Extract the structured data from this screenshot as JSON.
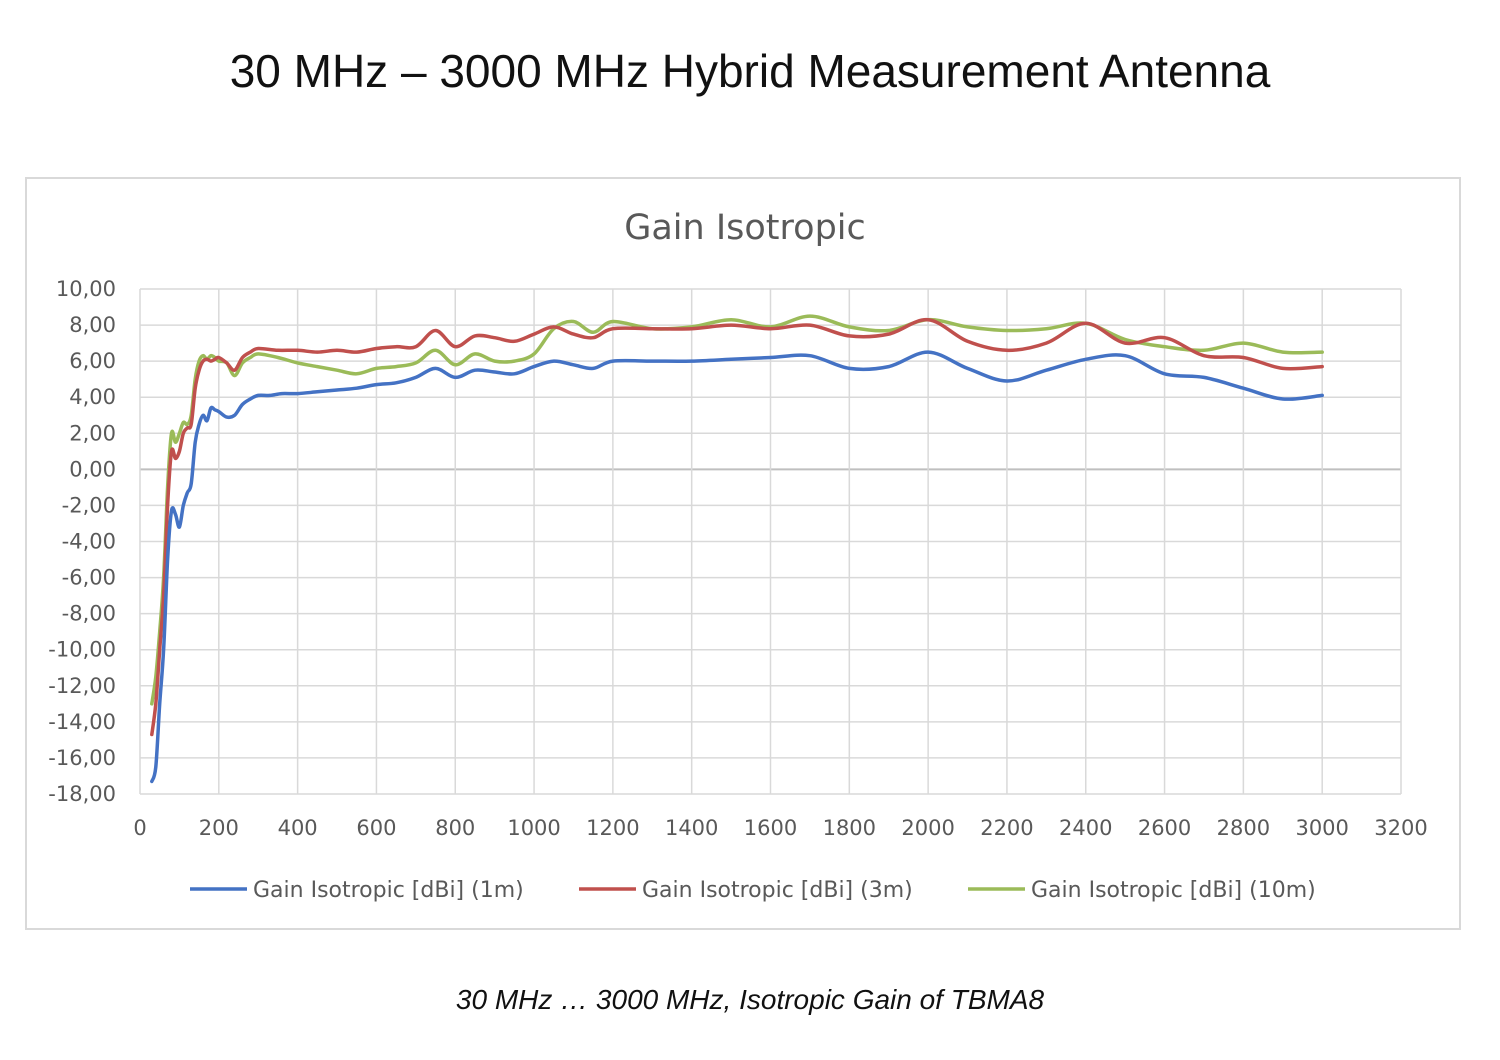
{
  "page_title": "30 MHz – 3000 MHz Hybrid Measurement Antenna",
  "caption": "30 MHz … 3000 MHz, Isotropic Gain of TBMA8",
  "chart_data": {
    "type": "line",
    "title": "Gain Isotropic",
    "xlabel": "",
    "ylabel": "",
    "xlim": [
      0,
      3200
    ],
    "ylim": [
      -18,
      10
    ],
    "x_ticks": [
      0,
      200,
      400,
      600,
      800,
      1000,
      1200,
      1400,
      1600,
      1800,
      2000,
      2200,
      2400,
      2600,
      2800,
      3000,
      3200
    ],
    "x_tick_labels": [
      "0",
      "200",
      "400",
      "600",
      "800",
      "1000",
      "1200",
      "1400",
      "1600",
      "1800",
      "2000",
      "2200",
      "2400",
      "2600",
      "2800",
      "3000",
      "3200"
    ],
    "y_ticks": [
      10,
      8,
      6,
      4,
      2,
      0,
      -2,
      -4,
      -6,
      -8,
      -10,
      -12,
      -14,
      -16,
      -18
    ],
    "y_tick_labels": [
      "10,00",
      "8,00",
      "6,00",
      "4,00",
      "2,00",
      "0,00",
      "-2,00",
      "-4,00",
      "-6,00",
      "-8,00",
      "-10,00",
      "-12,00",
      "-14,00",
      "-16,00",
      "-18,00"
    ],
    "grid": true,
    "legend_position": "bottom",
    "series": [
      {
        "name": "Gain Isotropic [dBi] (1m)",
        "color": "#4472C4",
        "points": [
          [
            30,
            -17.3
          ],
          [
            40,
            -16.5
          ],
          [
            50,
            -13
          ],
          [
            60,
            -10
          ],
          [
            70,
            -5
          ],
          [
            80,
            -2.3
          ],
          [
            90,
            -2.5
          ],
          [
            100,
            -3.2
          ],
          [
            110,
            -2
          ],
          [
            120,
            -1.3
          ],
          [
            130,
            -0.8
          ],
          [
            140,
            1.5
          ],
          [
            150,
            2.5
          ],
          [
            160,
            3
          ],
          [
            170,
            2.7
          ],
          [
            180,
            3.4
          ],
          [
            190,
            3.3
          ],
          [
            200,
            3.2
          ],
          [
            220,
            2.9
          ],
          [
            240,
            3
          ],
          [
            260,
            3.6
          ],
          [
            280,
            3.9
          ],
          [
            300,
            4.1
          ],
          [
            330,
            4.1
          ],
          [
            360,
            4.2
          ],
          [
            400,
            4.2
          ],
          [
            450,
            4.3
          ],
          [
            500,
            4.4
          ],
          [
            550,
            4.5
          ],
          [
            600,
            4.7
          ],
          [
            650,
            4.8
          ],
          [
            700,
            5.1
          ],
          [
            750,
            5.6
          ],
          [
            800,
            5.1
          ],
          [
            850,
            5.5
          ],
          [
            900,
            5.4
          ],
          [
            950,
            5.3
          ],
          [
            1000,
            5.7
          ],
          [
            1050,
            6.0
          ],
          [
            1100,
            5.8
          ],
          [
            1150,
            5.6
          ],
          [
            1200,
            6.0
          ],
          [
            1300,
            6.0
          ],
          [
            1400,
            6.0
          ],
          [
            1500,
            6.1
          ],
          [
            1600,
            6.2
          ],
          [
            1700,
            6.3
          ],
          [
            1800,
            5.6
          ],
          [
            1900,
            5.7
          ],
          [
            2000,
            6.5
          ],
          [
            2100,
            5.6
          ],
          [
            2200,
            4.9
          ],
          [
            2300,
            5.5
          ],
          [
            2400,
            6.1
          ],
          [
            2500,
            6.3
          ],
          [
            2600,
            5.3
          ],
          [
            2700,
            5.1
          ],
          [
            2800,
            4.5
          ],
          [
            2900,
            3.9
          ],
          [
            3000,
            4.1
          ]
        ]
      },
      {
        "name": "Gain Isotropic [dBi] (3m)",
        "color": "#C0504D",
        "points": [
          [
            30,
            -14.7
          ],
          [
            40,
            -13
          ],
          [
            50,
            -10
          ],
          [
            60,
            -7
          ],
          [
            70,
            -2
          ],
          [
            80,
            1
          ],
          [
            90,
            0.6
          ],
          [
            100,
            1
          ],
          [
            110,
            2
          ],
          [
            120,
            2.3
          ],
          [
            130,
            2.5
          ],
          [
            140,
            4.5
          ],
          [
            150,
            5.5
          ],
          [
            160,
            6
          ],
          [
            170,
            6.1
          ],
          [
            180,
            6
          ],
          [
            190,
            6.1
          ],
          [
            200,
            6.2
          ],
          [
            220,
            5.9
          ],
          [
            240,
            5.5
          ],
          [
            260,
            6.2
          ],
          [
            280,
            6.5
          ],
          [
            300,
            6.7
          ],
          [
            350,
            6.6
          ],
          [
            400,
            6.6
          ],
          [
            450,
            6.5
          ],
          [
            500,
            6.6
          ],
          [
            550,
            6.5
          ],
          [
            600,
            6.7
          ],
          [
            650,
            6.8
          ],
          [
            700,
            6.8
          ],
          [
            750,
            7.7
          ],
          [
            800,
            6.8
          ],
          [
            850,
            7.4
          ],
          [
            900,
            7.3
          ],
          [
            950,
            7.1
          ],
          [
            1000,
            7.5
          ],
          [
            1050,
            7.9
          ],
          [
            1100,
            7.5
          ],
          [
            1150,
            7.3
          ],
          [
            1200,
            7.8
          ],
          [
            1300,
            7.8
          ],
          [
            1400,
            7.8
          ],
          [
            1500,
            8.0
          ],
          [
            1600,
            7.8
          ],
          [
            1700,
            8.0
          ],
          [
            1800,
            7.4
          ],
          [
            1900,
            7.5
          ],
          [
            2000,
            8.3
          ],
          [
            2100,
            7.1
          ],
          [
            2200,
            6.6
          ],
          [
            2300,
            7.0
          ],
          [
            2400,
            8.1
          ],
          [
            2500,
            7.0
          ],
          [
            2600,
            7.3
          ],
          [
            2700,
            6.3
          ],
          [
            2800,
            6.2
          ],
          [
            2900,
            5.6
          ],
          [
            3000,
            5.7
          ]
        ]
      },
      {
        "name": "Gain Isotropic [dBi] (10m)",
        "color": "#9BBB59",
        "points": [
          [
            30,
            -13
          ],
          [
            40,
            -11.5
          ],
          [
            50,
            -9
          ],
          [
            60,
            -6
          ],
          [
            70,
            -1
          ],
          [
            80,
            2
          ],
          [
            90,
            1.5
          ],
          [
            100,
            2
          ],
          [
            110,
            2.6
          ],
          [
            120,
            2.5
          ],
          [
            130,
            3
          ],
          [
            140,
            5
          ],
          [
            150,
            6
          ],
          [
            160,
            6.3
          ],
          [
            170,
            6.1
          ],
          [
            180,
            6.3
          ],
          [
            190,
            6.2
          ],
          [
            200,
            6.0
          ],
          [
            220,
            5.9
          ],
          [
            240,
            5.2
          ],
          [
            260,
            5.9
          ],
          [
            280,
            6.2
          ],
          [
            300,
            6.4
          ],
          [
            350,
            6.2
          ],
          [
            400,
            5.9
          ],
          [
            450,
            5.7
          ],
          [
            500,
            5.5
          ],
          [
            550,
            5.3
          ],
          [
            600,
            5.6
          ],
          [
            650,
            5.7
          ],
          [
            700,
            5.9
          ],
          [
            750,
            6.6
          ],
          [
            800,
            5.8
          ],
          [
            850,
            6.4
          ],
          [
            900,
            6.0
          ],
          [
            950,
            6.0
          ],
          [
            1000,
            6.4
          ],
          [
            1050,
            7.8
          ],
          [
            1100,
            8.2
          ],
          [
            1150,
            7.6
          ],
          [
            1200,
            8.2
          ],
          [
            1300,
            7.8
          ],
          [
            1400,
            7.9
          ],
          [
            1500,
            8.3
          ],
          [
            1600,
            7.9
          ],
          [
            1700,
            8.5
          ],
          [
            1800,
            7.9
          ],
          [
            1900,
            7.7
          ],
          [
            2000,
            8.3
          ],
          [
            2100,
            7.9
          ],
          [
            2200,
            7.7
          ],
          [
            2300,
            7.8
          ],
          [
            2400,
            8.1
          ],
          [
            2500,
            7.2
          ],
          [
            2600,
            6.8
          ],
          [
            2700,
            6.6
          ],
          [
            2800,
            7.0
          ],
          [
            2900,
            6.5
          ],
          [
            3000,
            6.5
          ]
        ]
      }
    ]
  }
}
